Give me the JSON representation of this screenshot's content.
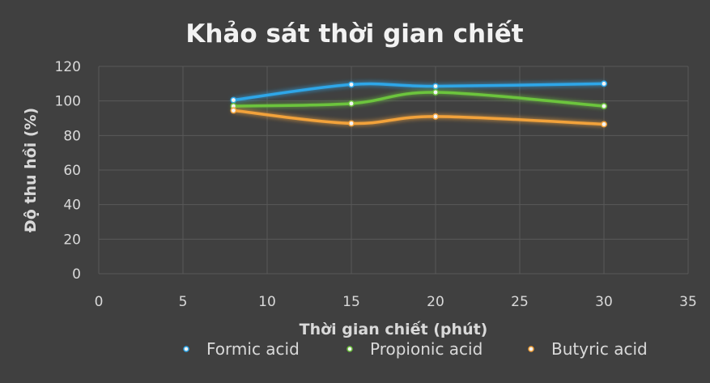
{
  "chart_data": {
    "type": "line",
    "title": "Khảo sát thời gian chiết",
    "xlabel": "Thời gian chiết (phút)",
    "ylabel": "Độ thu hồi (%)",
    "xlim": [
      0,
      35
    ],
    "ylim": [
      0,
      120
    ],
    "x_ticks": [
      "0",
      "5",
      "10",
      "15",
      "20",
      "25",
      "30",
      "35"
    ],
    "y_ticks": [
      "0",
      "20",
      "40",
      "60",
      "80",
      "100",
      "120"
    ],
    "grid": true,
    "smooth": true,
    "legend_position": "bottom",
    "background_color": "#404040",
    "series": [
      {
        "name": "Formic acid",
        "color": "#2ea6e8",
        "points": [
          [
            8,
            100.5
          ],
          [
            15,
            109.5
          ],
          [
            20,
            108.5
          ],
          [
            30,
            110
          ]
        ]
      },
      {
        "name": "Propionic acid",
        "color": "#6cc43c",
        "points": [
          [
            8,
            97
          ],
          [
            15,
            98.5
          ],
          [
            20,
            105
          ],
          [
            30,
            97
          ]
        ]
      },
      {
        "name": "Butyric acid",
        "color": "#f2a23a",
        "points": [
          [
            8,
            94.5
          ],
          [
            15,
            87
          ],
          [
            20,
            91
          ],
          [
            30,
            86.5
          ]
        ]
      }
    ]
  }
}
